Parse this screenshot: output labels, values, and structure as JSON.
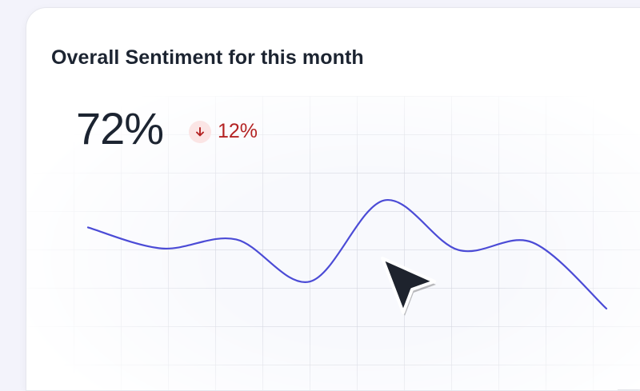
{
  "card": {
    "title": "Overall Sentiment for this month",
    "value": "72%",
    "change": {
      "text": "12%",
      "direction": "down",
      "icon": "arrow-down-icon",
      "color": "#b42323",
      "background": "#fbe5e5"
    }
  },
  "chart_data": {
    "type": "line",
    "title": "",
    "xlabel": "",
    "ylabel": "",
    "grid": true,
    "series": [
      {
        "color": "#4b4bd6",
        "values": [
          0.7,
          0.56,
          0.62,
          0.34,
          0.88,
          0.55,
          0.6,
          0.16
        ]
      }
    ]
  },
  "cursor": {
    "icon": "mouse-pointer-icon"
  }
}
